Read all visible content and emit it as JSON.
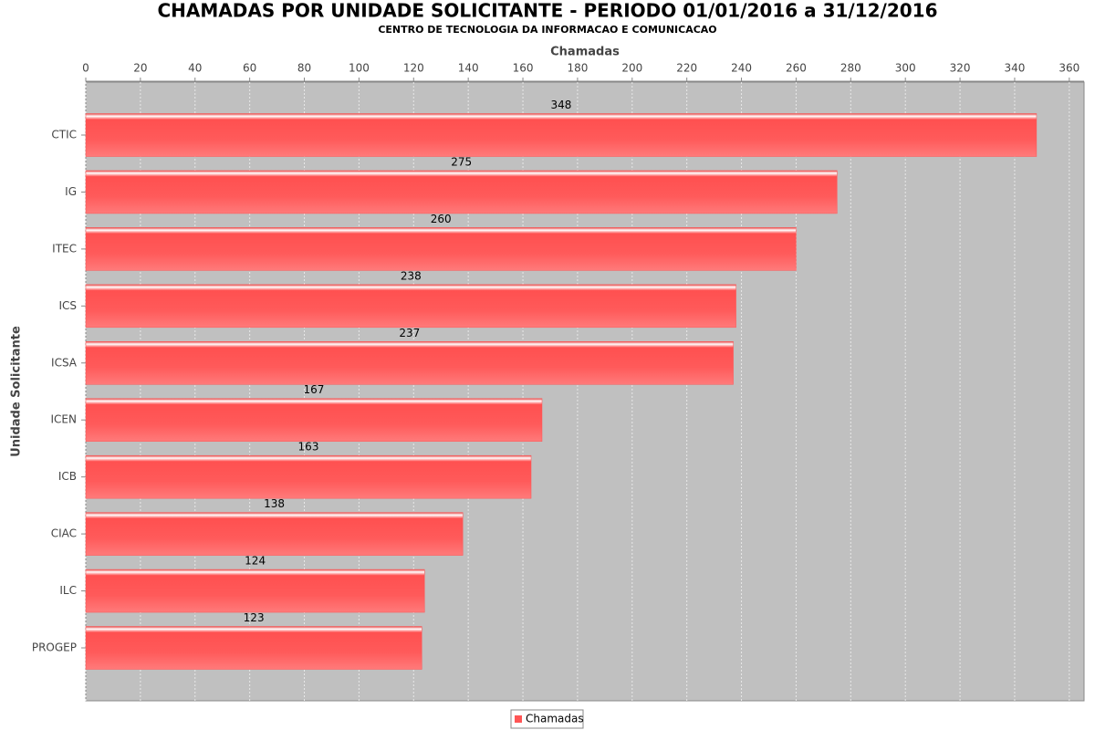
{
  "chart_data": {
    "type": "bar",
    "orientation": "horizontal",
    "title": "CHAMADAS POR UNIDADE SOLICITANTE - PERIODO 01/01/2016 a 31/12/2016",
    "subtitle": "CENTRO DE TECNOLOGIA DA INFORMACAO E COMUNICACAO",
    "x_label": "Chamadas",
    "y_label": "Unidade Solicitante",
    "categories": [
      "CTIC",
      "IG",
      "ITEC",
      "ICS",
      "ICSA",
      "ICEN",
      "ICB",
      "CIAC",
      "ILC",
      "PROGEP"
    ],
    "series": [
      {
        "name": "Chamadas",
        "color": "#ff5555",
        "values": [
          348,
          275,
          260,
          238,
          237,
          167,
          163,
          138,
          124,
          123
        ]
      }
    ],
    "xlim": [
      0,
      365.4
    ],
    "xticks": [
      0,
      20,
      40,
      60,
      80,
      100,
      120,
      140,
      160,
      180,
      200,
      220,
      240,
      260,
      280,
      300,
      320,
      340,
      360
    ],
    "grid": true,
    "legend": "bottom"
  }
}
